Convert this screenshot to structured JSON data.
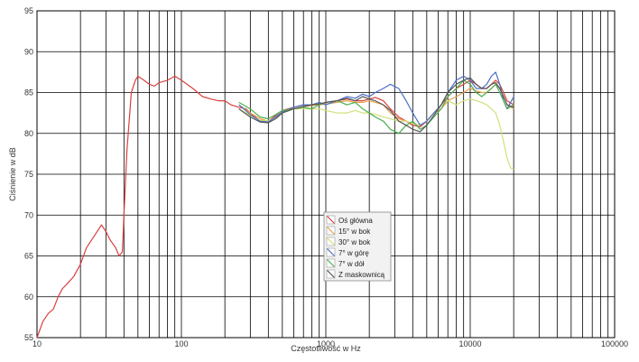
{
  "chart_data": {
    "type": "line",
    "xlabel": "Częstotliwość w Hz",
    "ylabel": "Ciśnienie w dB",
    "x_scale": "log",
    "xlim": [
      10,
      100000
    ],
    "ylim": [
      55,
      95
    ],
    "x_ticks": [
      "10",
      "100",
      "1000",
      "10000",
      "100000"
    ],
    "y_ticks": [
      "55",
      "60",
      "65",
      "70",
      "75",
      "80",
      "85",
      "90",
      "95"
    ],
    "grid": true,
    "legend_position": "center",
    "series": [
      {
        "name": "Oś główna",
        "color": "#d9403f",
        "points": [
          [
            10,
            55.0
          ],
          [
            11,
            57.0
          ],
          [
            12,
            58.0
          ],
          [
            13,
            58.5
          ],
          [
            14,
            60.0
          ],
          [
            15,
            61.0
          ],
          [
            16,
            61.5
          ],
          [
            18,
            62.5
          ],
          [
            20,
            64.0
          ],
          [
            22,
            66.0
          ],
          [
            25,
            67.5
          ],
          [
            28,
            68.8
          ],
          [
            30,
            68.0
          ],
          [
            32,
            67.0
          ],
          [
            35,
            66.0
          ],
          [
            37,
            65.0
          ],
          [
            39,
            65.5
          ],
          [
            40,
            70.0
          ],
          [
            42,
            78.0
          ],
          [
            45,
            85.0
          ],
          [
            48,
            86.5
          ],
          [
            50,
            87.0
          ],
          [
            55,
            86.5
          ],
          [
            60,
            86.0
          ],
          [
            65,
            85.8
          ],
          [
            70,
            86.2
          ],
          [
            80,
            86.5
          ],
          [
            90,
            87.0
          ],
          [
            100,
            86.5
          ],
          [
            120,
            85.5
          ],
          [
            140,
            84.5
          ],
          [
            160,
            84.2
          ],
          [
            180,
            84.0
          ],
          [
            200,
            84.0
          ],
          [
            220,
            83.5
          ],
          [
            250,
            83.2
          ],
          [
            280,
            83.0
          ],
          [
            300,
            82.5
          ],
          [
            350,
            81.5
          ],
          [
            400,
            81.5
          ],
          [
            450,
            82.2
          ],
          [
            500,
            82.8
          ],
          [
            600,
            83.2
          ],
          [
            700,
            83.5
          ],
          [
            800,
            83.5
          ],
          [
            900,
            83.6
          ],
          [
            1000,
            83.8
          ],
          [
            1200,
            84.0
          ],
          [
            1400,
            84.2
          ],
          [
            1600,
            84.0
          ],
          [
            1800,
            84.0
          ],
          [
            2000,
            84.2
          ],
          [
            2200,
            84.4
          ],
          [
            2500,
            84.0
          ],
          [
            2800,
            83.0
          ],
          [
            3200,
            82.0
          ],
          [
            3600,
            81.5
          ],
          [
            4000,
            81.0
          ],
          [
            4500,
            80.8
          ],
          [
            5000,
            81.5
          ],
          [
            5600,
            82.5
          ],
          [
            6300,
            83.5
          ],
          [
            7000,
            84.5
          ],
          [
            8000,
            85.5
          ],
          [
            9000,
            86.0
          ],
          [
            10000,
            86.5
          ],
          [
            11000,
            86.0
          ],
          [
            12000,
            85.5
          ],
          [
            13000,
            85.5
          ],
          [
            14000,
            86.0
          ],
          [
            15000,
            86.5
          ],
          [
            16000,
            86.0
          ],
          [
            17000,
            85.0
          ],
          [
            18000,
            84.0
          ],
          [
            20000,
            83.5
          ]
        ]
      },
      {
        "name": "15° w bok",
        "color": "#e8a24a",
        "points": [
          [
            250,
            83.5
          ],
          [
            300,
            82.5
          ],
          [
            350,
            81.8
          ],
          [
            400,
            81.5
          ],
          [
            450,
            82.0
          ],
          [
            500,
            82.5
          ],
          [
            600,
            83.0
          ],
          [
            700,
            83.3
          ],
          [
            800,
            83.4
          ],
          [
            900,
            83.5
          ],
          [
            1000,
            83.6
          ],
          [
            1200,
            83.8
          ],
          [
            1400,
            84.0
          ],
          [
            1600,
            83.8
          ],
          [
            1800,
            83.8
          ],
          [
            2000,
            84.0
          ],
          [
            2200,
            83.8
          ],
          [
            2500,
            83.5
          ],
          [
            2800,
            82.5
          ],
          [
            3200,
            81.8
          ],
          [
            3600,
            81.5
          ],
          [
            4000,
            81.2
          ],
          [
            4500,
            81.0
          ],
          [
            5000,
            81.5
          ],
          [
            5600,
            82.5
          ],
          [
            6300,
            83.0
          ],
          [
            7000,
            84.0
          ],
          [
            8000,
            84.5
          ],
          [
            9000,
            85.0
          ],
          [
            10000,
            85.5
          ],
          [
            11000,
            85.2
          ],
          [
            12000,
            85.0
          ],
          [
            13000,
            85.0
          ],
          [
            14000,
            85.5
          ],
          [
            15000,
            86.0
          ],
          [
            16000,
            85.5
          ],
          [
            17000,
            84.5
          ],
          [
            18000,
            83.5
          ],
          [
            20000,
            83.0
          ]
        ]
      },
      {
        "name": "30° w bok",
        "color": "#d2e07a",
        "points": [
          [
            250,
            83.0
          ],
          [
            300,
            82.2
          ],
          [
            350,
            81.6
          ],
          [
            400,
            81.5
          ],
          [
            450,
            82.0
          ],
          [
            500,
            82.5
          ],
          [
            600,
            83.0
          ],
          [
            700,
            83.0
          ],
          [
            800,
            83.0
          ],
          [
            900,
            83.0
          ],
          [
            1000,
            82.8
          ],
          [
            1200,
            82.5
          ],
          [
            1400,
            82.5
          ],
          [
            1600,
            82.8
          ],
          [
            1800,
            82.5
          ],
          [
            2000,
            82.5
          ],
          [
            2200,
            82.3
          ],
          [
            2500,
            82.0
          ],
          [
            2800,
            81.8
          ],
          [
            3200,
            81.5
          ],
          [
            3600,
            81.5
          ],
          [
            4000,
            81.2
          ],
          [
            4500,
            81.0
          ],
          [
            5000,
            81.5
          ],
          [
            5600,
            82.5
          ],
          [
            6300,
            83.5
          ],
          [
            7000,
            84.0
          ],
          [
            8000,
            83.5
          ],
          [
            9000,
            84.0
          ],
          [
            10000,
            84.2
          ],
          [
            11000,
            84.0
          ],
          [
            12000,
            83.8
          ],
          [
            13000,
            83.5
          ],
          [
            14000,
            83.0
          ],
          [
            15000,
            82.5
          ],
          [
            16000,
            81.0
          ],
          [
            17000,
            79.0
          ],
          [
            18000,
            77.0
          ],
          [
            19000,
            75.8
          ],
          [
            20000,
            75.6
          ]
        ]
      },
      {
        "name": "7° w górę",
        "color": "#4a6fc4",
        "points": [
          [
            250,
            83.5
          ],
          [
            300,
            82.3
          ],
          [
            350,
            81.5
          ],
          [
            400,
            81.4
          ],
          [
            450,
            82.0
          ],
          [
            500,
            82.6
          ],
          [
            600,
            83.2
          ],
          [
            700,
            83.5
          ],
          [
            800,
            83.5
          ],
          [
            900,
            83.8
          ],
          [
            1000,
            83.5
          ],
          [
            1200,
            84.0
          ],
          [
            1400,
            84.5
          ],
          [
            1600,
            84.3
          ],
          [
            1800,
            84.8
          ],
          [
            2000,
            84.5
          ],
          [
            2200,
            85.0
          ],
          [
            2500,
            85.5
          ],
          [
            2800,
            86.0
          ],
          [
            3200,
            85.5
          ],
          [
            3600,
            84.0
          ],
          [
            4000,
            82.5
          ],
          [
            4500,
            81.0
          ],
          [
            5000,
            81.5
          ],
          [
            5600,
            82.5
          ],
          [
            6300,
            83.5
          ],
          [
            7000,
            85.0
          ],
          [
            8000,
            86.5
          ],
          [
            9000,
            87.0
          ],
          [
            10000,
            86.5
          ],
          [
            11000,
            85.5
          ],
          [
            12000,
            85.5
          ],
          [
            13000,
            86.0
          ],
          [
            14000,
            87.0
          ],
          [
            15000,
            87.5
          ],
          [
            16000,
            86.0
          ],
          [
            17000,
            84.0
          ],
          [
            18000,
            83.0
          ],
          [
            20000,
            84.5
          ]
        ]
      },
      {
        "name": "7° w dół",
        "color": "#4caf50",
        "points": [
          [
            250,
            83.8
          ],
          [
            300,
            83.0
          ],
          [
            350,
            82.0
          ],
          [
            400,
            81.8
          ],
          [
            450,
            82.3
          ],
          [
            500,
            82.8
          ],
          [
            600,
            83.0
          ],
          [
            700,
            83.2
          ],
          [
            800,
            83.0
          ],
          [
            900,
            83.5
          ],
          [
            1000,
            83.8
          ],
          [
            1200,
            84.0
          ],
          [
            1400,
            83.5
          ],
          [
            1600,
            83.8
          ],
          [
            1800,
            83.0
          ],
          [
            2000,
            82.5
          ],
          [
            2200,
            82.0
          ],
          [
            2500,
            81.5
          ],
          [
            2800,
            80.5
          ],
          [
            3200,
            80.0
          ],
          [
            3600,
            81.0
          ],
          [
            4000,
            81.5
          ],
          [
            4500,
            80.5
          ],
          [
            5000,
            81.0
          ],
          [
            5600,
            82.0
          ],
          [
            6300,
            83.0
          ],
          [
            7000,
            84.5
          ],
          [
            8000,
            85.5
          ],
          [
            9000,
            86.5
          ],
          [
            10000,
            86.0
          ],
          [
            11000,
            85.0
          ],
          [
            12000,
            84.5
          ],
          [
            13000,
            85.0
          ],
          [
            14000,
            85.5
          ],
          [
            15000,
            86.0
          ],
          [
            16000,
            85.0
          ],
          [
            17000,
            84.0
          ],
          [
            18000,
            83.0
          ],
          [
            20000,
            83.5
          ]
        ]
      },
      {
        "name": "Z maskownicą",
        "color": "#555555",
        "points": [
          [
            250,
            83.0
          ],
          [
            300,
            82.0
          ],
          [
            350,
            81.4
          ],
          [
            400,
            81.3
          ],
          [
            450,
            81.8
          ],
          [
            500,
            82.5
          ],
          [
            600,
            83.0
          ],
          [
            700,
            83.3
          ],
          [
            800,
            83.5
          ],
          [
            900,
            83.6
          ],
          [
            1000,
            83.8
          ],
          [
            1200,
            84.0
          ],
          [
            1400,
            84.3
          ],
          [
            1600,
            84.0
          ],
          [
            1800,
            84.5
          ],
          [
            2000,
            84.2
          ],
          [
            2200,
            84.0
          ],
          [
            2500,
            83.5
          ],
          [
            2800,
            82.8
          ],
          [
            3200,
            81.5
          ],
          [
            3600,
            81.0
          ],
          [
            4000,
            80.5
          ],
          [
            4500,
            80.2
          ],
          [
            5000,
            81.0
          ],
          [
            5600,
            82.2
          ],
          [
            6300,
            83.5
          ],
          [
            7000,
            85.0
          ],
          [
            8000,
            86.0
          ],
          [
            9000,
            86.5
          ],
          [
            10000,
            86.8
          ],
          [
            11000,
            86.0
          ],
          [
            12000,
            85.5
          ],
          [
            13000,
            85.5
          ],
          [
            14000,
            86.0
          ],
          [
            15000,
            86.2
          ],
          [
            16000,
            85.5
          ],
          [
            17000,
            84.5
          ],
          [
            18000,
            83.5
          ],
          [
            20000,
            83.2
          ]
        ]
      }
    ]
  }
}
